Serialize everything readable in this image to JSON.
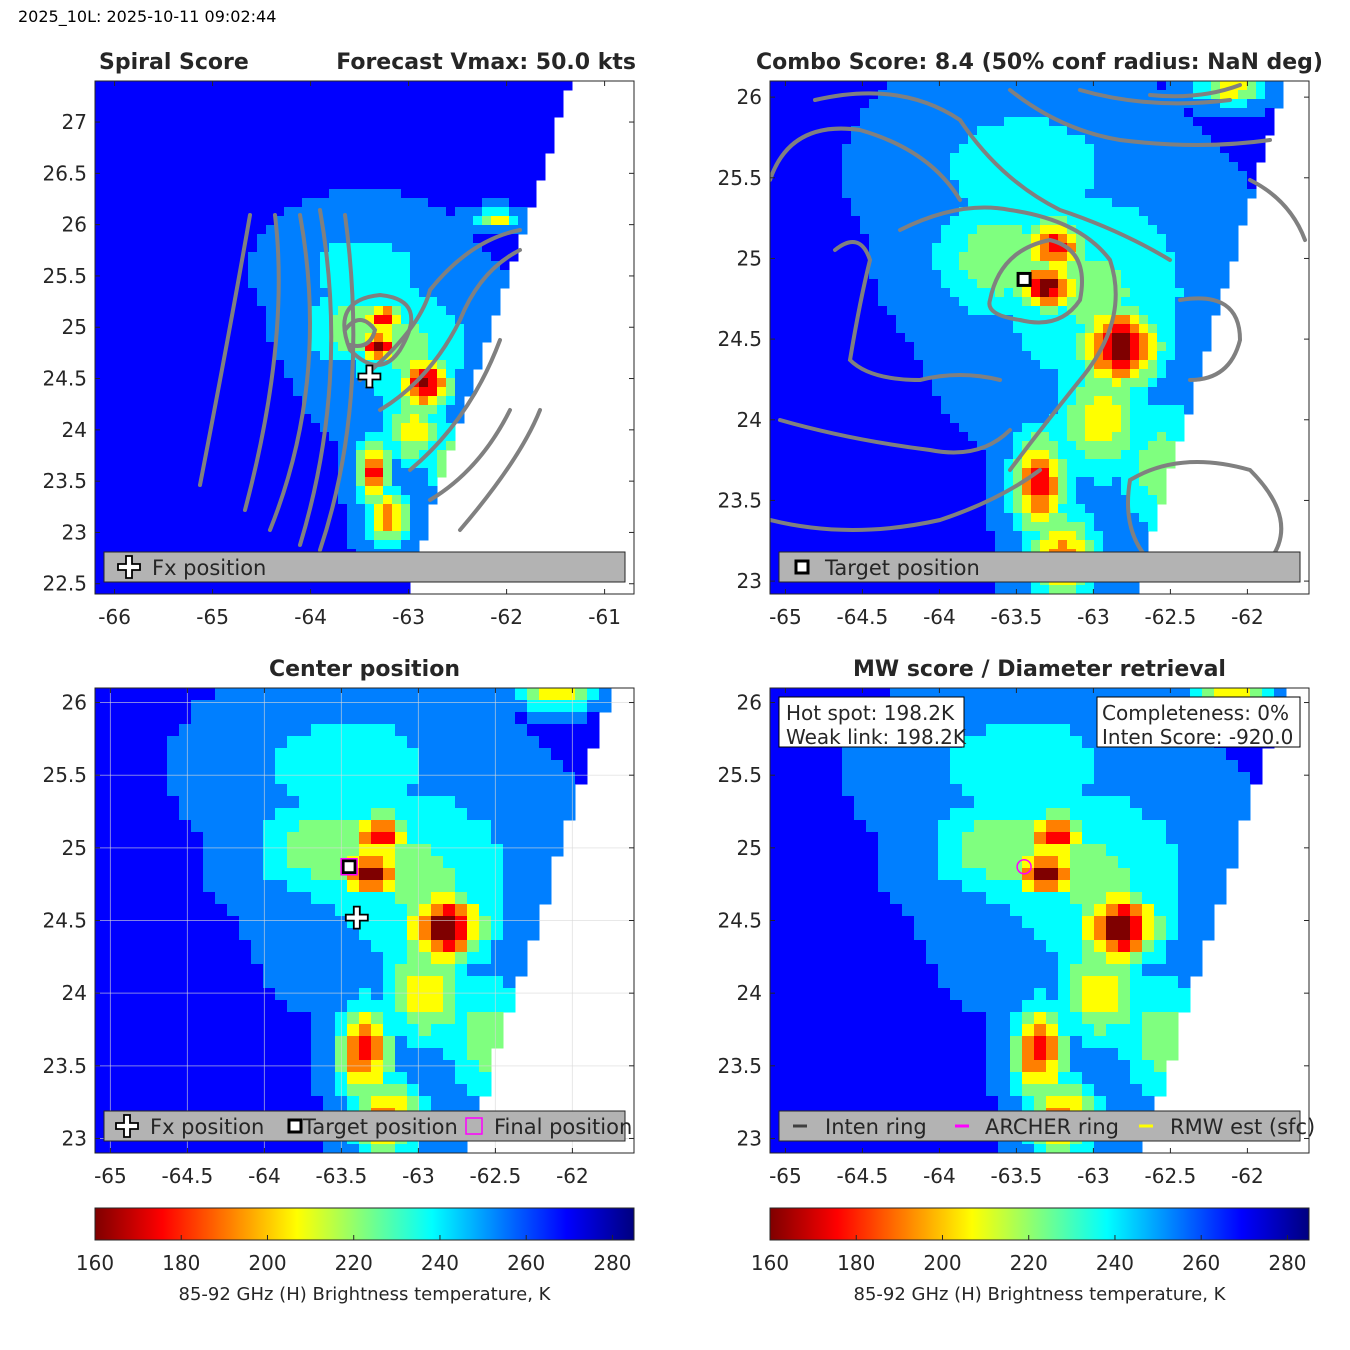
{
  "figure": {
    "header": "2025_10L: 2025-10-11 09:02:44"
  },
  "colors": {
    "jet": [
      "#00007f",
      "#0000ff",
      "#007fff",
      "#00ffff",
      "#7fff7f",
      "#ffff00",
      "#ff7f00",
      "#ff0000",
      "#7f0000"
    ],
    "contour": "#808080",
    "legend_bg": "#b3b3b3",
    "archer_ring": "#ff00ff",
    "rmw_est": "#ffff00",
    "inten_ring": "#404040"
  },
  "chart_data": [
    {
      "id": "spiral",
      "type": "heatmap",
      "title_left": "Spiral Score",
      "title_right": "Forecast Vmax: 50.0 kts",
      "xlim": [
        -66.2,
        -60.7
      ],
      "ylim": [
        22.4,
        27.4
      ],
      "xticks": [
        -66,
        -65,
        -64,
        -63,
        -62,
        -61
      ],
      "xtick_labels": [
        "-66",
        "-65",
        "-64",
        "-63",
        "-62",
        "-61"
      ],
      "yticks": [
        22.5,
        23,
        23.5,
        24,
        24.5,
        25,
        25.5,
        26,
        26.5,
        27
      ],
      "ytick_labels": [
        "22.5",
        "23",
        "23.5",
        "24",
        "24.5",
        "25",
        "25.5",
        "26",
        "26.5",
        "27"
      ],
      "markers": [
        {
          "kind": "cross",
          "x": -63.4,
          "y": 24.52
        }
      ],
      "legend": [
        "Fx position"
      ],
      "legend_placement": "bottom"
    },
    {
      "id": "combo",
      "type": "heatmap",
      "title": "Combo Score: 8.4  (50% conf radius: NaN deg)",
      "xlim": [
        -65.1,
        -61.6
      ],
      "ylim": [
        22.92,
        26.1
      ],
      "xticks": [
        -65,
        -64.5,
        -64,
        -63.5,
        -63,
        -62.5,
        -62
      ],
      "xtick_labels": [
        "-65",
        "-64.5",
        "-64",
        "-63.5",
        "-63",
        "-62.5",
        "-62"
      ],
      "yticks": [
        23,
        23.5,
        24,
        24.5,
        25,
        25.5,
        26
      ],
      "ytick_labels": [
        "23",
        "23.5",
        "24",
        "24.5",
        "25",
        "25.5",
        "26"
      ],
      "markers": [
        {
          "kind": "square",
          "x": -63.45,
          "y": 24.87
        }
      ],
      "legend": [
        "Target position"
      ],
      "legend_placement": "bottom"
    },
    {
      "id": "center",
      "type": "heatmap",
      "title": "Center position",
      "xlim": [
        -65.1,
        -61.6
      ],
      "ylim": [
        22.9,
        26.1
      ],
      "xticks": [
        -65,
        -64.5,
        -64,
        -63.5,
        -63,
        -62.5,
        -62
      ],
      "xtick_labels": [
        "-65",
        "-64.5",
        "-64",
        "-63.5",
        "-63",
        "-62.5",
        "-62"
      ],
      "yticks": [
        23,
        23.5,
        24,
        24.5,
        25,
        25.5,
        26
      ],
      "ytick_labels": [
        "23",
        "23.5",
        "24",
        "24.5",
        "25",
        "25.5",
        "26"
      ],
      "grid": true,
      "markers": [
        {
          "kind": "cross",
          "x": -63.4,
          "y": 24.52
        },
        {
          "kind": "square",
          "x": -63.45,
          "y": 24.87
        },
        {
          "kind": "magenta-square",
          "x": -63.45,
          "y": 24.87
        }
      ],
      "legend": [
        "Fx position",
        "Target position",
        "Final position"
      ],
      "legend_placement": "bottom",
      "colorbar": {
        "label": "85-92 GHz (H) Brightness temperature, K",
        "range": [
          160,
          285
        ],
        "ticks": [
          160,
          180,
          200,
          220,
          240,
          260,
          280
        ],
        "tick_labels": [
          "160",
          "180",
          "200",
          "220",
          "240",
          "260",
          "280"
        ]
      }
    },
    {
      "id": "mw",
      "type": "heatmap",
      "title": "MW score / Diameter retrieval",
      "xlim": [
        -65.1,
        -61.6
      ],
      "ylim": [
        22.9,
        26.1
      ],
      "xticks": [
        -65,
        -64.5,
        -64,
        -63.5,
        -63,
        -62.5,
        -62
      ],
      "xtick_labels": [
        "-65",
        "-64.5",
        "-64",
        "-63.5",
        "-63",
        "-62.5",
        "-62"
      ],
      "yticks": [
        23,
        23.5,
        24,
        24.5,
        25,
        25.5,
        26
      ],
      "ytick_labels": [
        "23",
        "23.5",
        "24",
        "24.5",
        "25",
        "25.5",
        "26"
      ],
      "markers": [
        {
          "kind": "circle",
          "x": -63.45,
          "y": 24.87
        }
      ],
      "legend": [
        "Inten ring",
        "ARCHER ring",
        "RMW est (sfc)"
      ],
      "legend_placement": "bottom",
      "annotations": {
        "left": [
          "Hot spot: 198.2K",
          "Weak link: 198.2K"
        ],
        "right": [
          "Completeness: 0%",
          "Inten Score: -920.0"
        ]
      },
      "colorbar": {
        "label": "85-92 GHz (H) Brightness temperature, K",
        "range": [
          160,
          285
        ],
        "ticks": [
          160,
          180,
          200,
          220,
          240,
          260,
          280
        ],
        "tick_labels": [
          "160",
          "180",
          "200",
          "220",
          "240",
          "260",
          "280"
        ]
      }
    }
  ]
}
